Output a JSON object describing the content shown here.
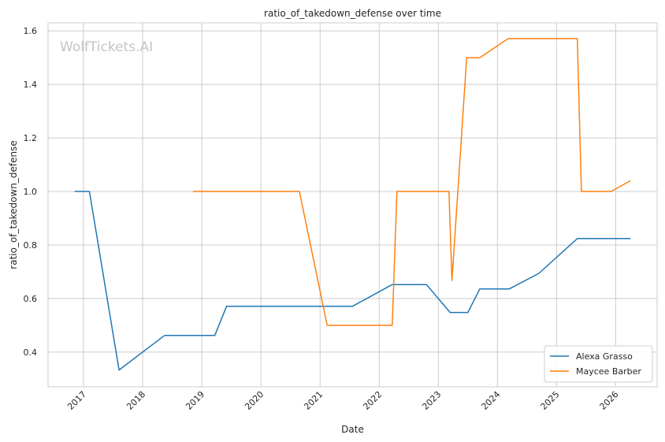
{
  "chart_data": {
    "type": "line",
    "title": "ratio_of_takedown_defense over time",
    "xlabel": "Date",
    "ylabel": "ratio_of_takedown_defense",
    "watermark": "WolfTickets.AI",
    "xlim": [
      2016.4,
      2026.7
    ],
    "ylim": [
      0.27,
      1.63
    ],
    "x_ticks": [
      2017,
      2018,
      2019,
      2020,
      2021,
      2022,
      2023,
      2024,
      2025,
      2026
    ],
    "y_ticks": [
      0.4,
      0.6,
      0.8,
      1.0,
      1.2,
      1.4,
      1.6
    ],
    "y_tick_labels": [
      "0.4",
      "0.6",
      "0.8",
      "1.0",
      "1.2",
      "1.4",
      "1.6"
    ],
    "grid": true,
    "legend_position": "bottom-right",
    "series": [
      {
        "name": "Alexa Grasso",
        "color": "#1f77b4",
        "points": [
          [
            2016.85,
            1.0
          ],
          [
            2017.1,
            1.0
          ],
          [
            2017.6,
            0.333
          ],
          [
            2018.37,
            0.462
          ],
          [
            2019.22,
            0.462
          ],
          [
            2019.42,
            0.571
          ],
          [
            2021.55,
            0.571
          ],
          [
            2022.22,
            0.652
          ],
          [
            2022.8,
            0.652
          ],
          [
            2023.2,
            0.548
          ],
          [
            2023.5,
            0.548
          ],
          [
            2023.7,
            0.636
          ],
          [
            2024.2,
            0.636
          ],
          [
            2024.7,
            0.694
          ],
          [
            2025.35,
            0.824
          ],
          [
            2026.25,
            0.824
          ]
        ]
      },
      {
        "name": "Maycee Barber",
        "color": "#ff7f0e",
        "points": [
          [
            2018.85,
            1.0
          ],
          [
            2020.65,
            1.0
          ],
          [
            2021.12,
            0.5
          ],
          [
            2022.22,
            0.5
          ],
          [
            2022.3,
            1.0
          ],
          [
            2023.18,
            1.0
          ],
          [
            2023.23,
            0.667
          ],
          [
            2023.48,
            1.5
          ],
          [
            2023.7,
            1.5
          ],
          [
            2024.18,
            1.571
          ],
          [
            2025.35,
            1.571
          ],
          [
            2025.42,
            1.0
          ],
          [
            2025.92,
            1.0
          ],
          [
            2026.25,
            1.04
          ]
        ]
      }
    ]
  }
}
